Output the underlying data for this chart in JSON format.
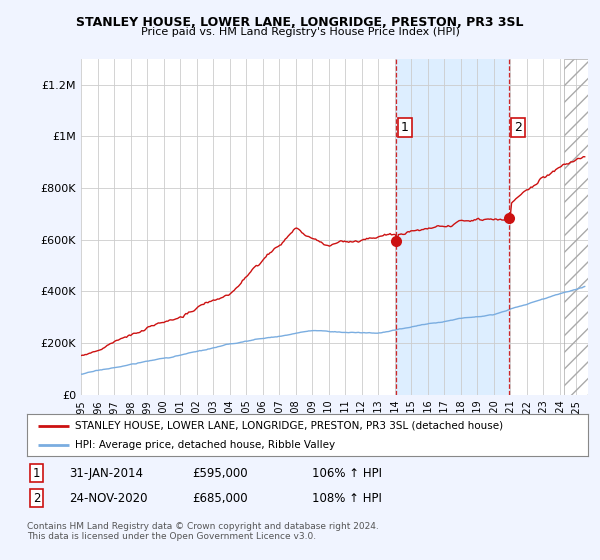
{
  "title": "STANLEY HOUSE, LOWER LANE, LONGRIDGE, PRESTON, PR3 3SL",
  "subtitle": "Price paid vs. HM Land Registry's House Price Index (HPI)",
  "ylabel_ticks": [
    "£0",
    "£200K",
    "£400K",
    "£600K",
    "£800K",
    "£1M",
    "£1.2M"
  ],
  "ytick_vals": [
    0,
    200000,
    400000,
    600000,
    800000,
    1000000,
    1200000
  ],
  "ylim": [
    0,
    1300000
  ],
  "xlim_start": 1995.0,
  "xlim_end": 2025.7,
  "hpi_color": "#7aade0",
  "price_color": "#cc1111",
  "vline_color": "#cc1111",
  "shade_color": "#ddeeff",
  "hatch_color": "#bbbbbb",
  "sale1_x": 2014.07,
  "sale1_y": 595000,
  "sale2_x": 2020.92,
  "sale2_y": 685000,
  "hatch_start": 2024.25,
  "legend_line1": "STANLEY HOUSE, LOWER LANE, LONGRIDGE, PRESTON, PR3 3SL (detached house)",
  "legend_line2": "HPI: Average price, detached house, Ribble Valley",
  "table_row1": [
    "1",
    "31-JAN-2014",
    "£595,000",
    "106% ↑ HPI"
  ],
  "table_row2": [
    "2",
    "24-NOV-2020",
    "£685,000",
    "108% ↑ HPI"
  ],
  "footnote": "Contains HM Land Registry data © Crown copyright and database right 2024.\nThis data is licensed under the Open Government Licence v3.0.",
  "bg_color": "#f0f4ff",
  "plot_bg": "#ffffff",
  "grid_color": "#cccccc"
}
